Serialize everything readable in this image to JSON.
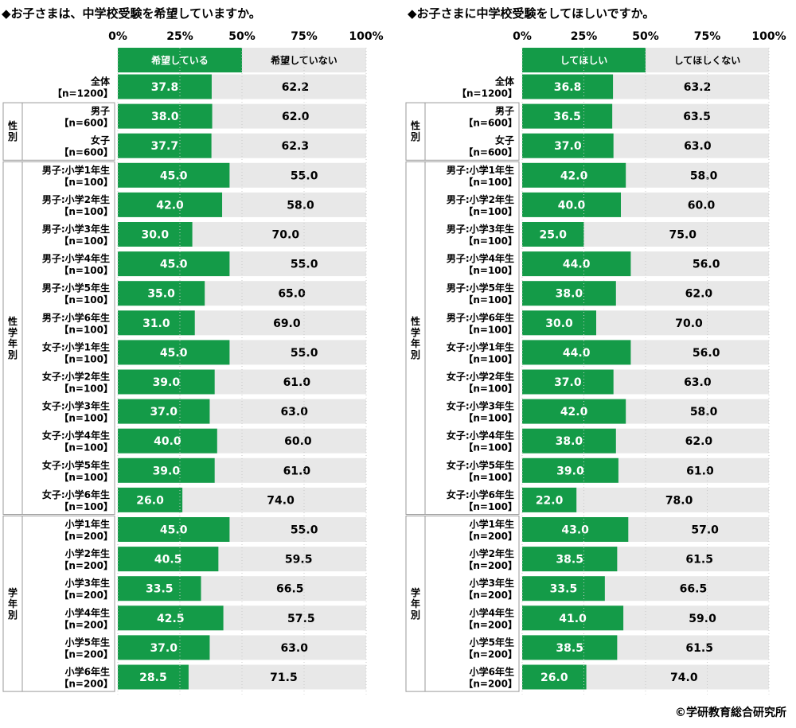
{
  "colors": {
    "primary_bar": "#149b48",
    "secondary_bar": "#e8e8e8",
    "group_box_border": "#999999",
    "grid_line": "#c8c8c8"
  },
  "copyright": "©学研教育総合研究所",
  "chart_data": [
    {
      "type": "bar",
      "orientation": "horizontal",
      "stacked": true,
      "title": "◆お子さまは、中学校受験を希望していますか。",
      "x_ticks": [
        "0%",
        "25%",
        "50%",
        "75%",
        "100%"
      ],
      "xlim": [
        0,
        100
      ],
      "legend": [
        "希望している",
        "希望していない"
      ],
      "legend_placement": "top",
      "groups": [
        {
          "label": "",
          "rows": [
            0
          ]
        },
        {
          "label": "性別",
          "rows": [
            1,
            2
          ]
        },
        {
          "label": "性学年別",
          "rows": [
            3,
            4,
            5,
            6,
            7,
            8,
            9,
            10,
            11,
            12,
            13,
            14
          ]
        },
        {
          "label": "学年別",
          "rows": [
            15,
            16,
            17,
            18,
            19,
            20
          ]
        }
      ],
      "categories": [
        [
          "全体",
          "【n=1200】"
        ],
        [
          "男子",
          "【n=600】"
        ],
        [
          "女子",
          "【n=600】"
        ],
        [
          "男子:小学1年生",
          "【n=100】"
        ],
        [
          "男子:小学2年生",
          "【n=100】"
        ],
        [
          "男子:小学3年生",
          "【n=100】"
        ],
        [
          "男子:小学4年生",
          "【n=100】"
        ],
        [
          "男子:小学5年生",
          "【n=100】"
        ],
        [
          "男子:小学6年生",
          "【n=100】"
        ],
        [
          "女子:小学1年生",
          "【n=100】"
        ],
        [
          "女子:小学2年生",
          "【n=100】"
        ],
        [
          "女子:小学3年生",
          "【n=100】"
        ],
        [
          "女子:小学4年生",
          "【n=100】"
        ],
        [
          "女子:小学5年生",
          "【n=100】"
        ],
        [
          "女子:小学6年生",
          "【n=100】"
        ],
        [
          "小学1年生",
          "【n=200】"
        ],
        [
          "小学2年生",
          "【n=200】"
        ],
        [
          "小学3年生",
          "【n=200】"
        ],
        [
          "小学4年生",
          "【n=200】"
        ],
        [
          "小学5年生",
          "【n=200】"
        ],
        [
          "小学6年生",
          "【n=200】"
        ]
      ],
      "series": [
        {
          "name": "希望している",
          "values": [
            37.8,
            38.0,
            37.7,
            45.0,
            42.0,
            30.0,
            45.0,
            35.0,
            31.0,
            45.0,
            39.0,
            37.0,
            40.0,
            39.0,
            26.0,
            45.0,
            40.5,
            33.5,
            42.5,
            37.0,
            28.5
          ]
        },
        {
          "name": "希望していない",
          "values": [
            62.2,
            62.0,
            62.3,
            55.0,
            58.0,
            70.0,
            55.0,
            65.0,
            69.0,
            55.0,
            61.0,
            63.0,
            60.0,
            61.0,
            74.0,
            55.0,
            59.5,
            66.5,
            57.5,
            63.0,
            71.5
          ]
        }
      ]
    },
    {
      "type": "bar",
      "orientation": "horizontal",
      "stacked": true,
      "title": "◆お子さまに中学校受験をしてほしいですか。",
      "x_ticks": [
        "0%",
        "25%",
        "50%",
        "75%",
        "100%"
      ],
      "xlim": [
        0,
        100
      ],
      "legend": [
        "してほしい",
        "してほしくない"
      ],
      "legend_placement": "top",
      "groups": [
        {
          "label": "",
          "rows": [
            0
          ]
        },
        {
          "label": "性別",
          "rows": [
            1,
            2
          ]
        },
        {
          "label": "性学年別",
          "rows": [
            3,
            4,
            5,
            6,
            7,
            8,
            9,
            10,
            11,
            12,
            13,
            14
          ]
        },
        {
          "label": "学年別",
          "rows": [
            15,
            16,
            17,
            18,
            19,
            20
          ]
        }
      ],
      "categories": [
        [
          "全体",
          "【n=1200】"
        ],
        [
          "男子",
          "【n=600】"
        ],
        [
          "女子",
          "【n=600】"
        ],
        [
          "男子:小学1年生",
          "【n=100】"
        ],
        [
          "男子:小学2年生",
          "【n=100】"
        ],
        [
          "男子:小学3年生",
          "【n=100】"
        ],
        [
          "男子:小学4年生",
          "【n=100】"
        ],
        [
          "男子:小学5年生",
          "【n=100】"
        ],
        [
          "男子:小学6年生",
          "【n=100】"
        ],
        [
          "女子:小学1年生",
          "【n=100】"
        ],
        [
          "女子:小学2年生",
          "【n=100】"
        ],
        [
          "女子:小学3年生",
          "【n=100】"
        ],
        [
          "女子:小学4年生",
          "【n=100】"
        ],
        [
          "女子:小学5年生",
          "【n=100】"
        ],
        [
          "女子:小学6年生",
          "【n=100】"
        ],
        [
          "小学1年生",
          "【n=200】"
        ],
        [
          "小学2年生",
          "【n=200】"
        ],
        [
          "小学3年生",
          "【n=200】"
        ],
        [
          "小学4年生",
          "【n=200】"
        ],
        [
          "小学5年生",
          "【n=200】"
        ],
        [
          "小学6年生",
          "【n=200】"
        ]
      ],
      "series": [
        {
          "name": "してほしい",
          "values": [
            36.8,
            36.5,
            37.0,
            42.0,
            40.0,
            25.0,
            44.0,
            38.0,
            30.0,
            44.0,
            37.0,
            42.0,
            38.0,
            39.0,
            22.0,
            43.0,
            38.5,
            33.5,
            41.0,
            38.5,
            26.0
          ]
        },
        {
          "name": "してほしくない",
          "values": [
            63.2,
            63.5,
            63.0,
            58.0,
            60.0,
            75.0,
            56.0,
            62.0,
            70.0,
            56.0,
            63.0,
            58.0,
            62.0,
            61.0,
            78.0,
            57.0,
            61.5,
            66.5,
            59.0,
            61.5,
            74.0
          ]
        }
      ]
    }
  ]
}
